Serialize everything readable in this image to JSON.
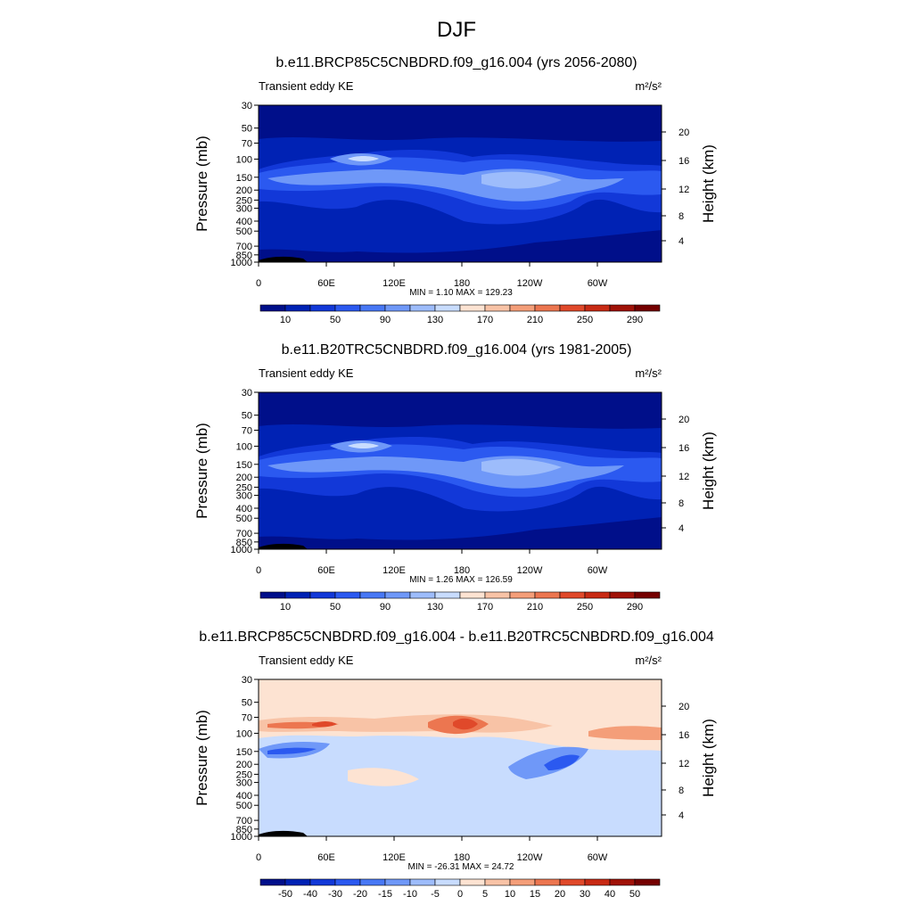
{
  "figure": {
    "title": "DJF"
  },
  "chart_data": [
    {
      "type": "heatmap",
      "title": "b.e11.BRCP85C5CNBDRD.f09_g16.004 (yrs 2056-2080)",
      "left_label": "Transient eddy KE",
      "units_label": "m²/s²",
      "ylabel": "Pressure (mb)",
      "ylabel_right": "Height (km)",
      "x_ticks": [
        "0",
        "60E",
        "120E",
        "180",
        "120W",
        "60W"
      ],
      "p_ticks": [
        "30",
        "50",
        "70",
        "100",
        "150",
        "200",
        "250",
        "300",
        "400",
        "500",
        "700",
        "850",
        "1000"
      ],
      "h_ticks": [
        "20",
        "16",
        "12",
        "8",
        "4"
      ],
      "minmax": "MIN =   1.10  MAX = 129.23",
      "min": 1.1,
      "max": 129.23,
      "colorbar": {
        "labels": [
          "10",
          "50",
          "90",
          "130",
          "170",
          "210",
          "250",
          "290"
        ],
        "colors": [
          "#000f8a",
          "#0022b4",
          "#1238d8",
          "#2b59f0",
          "#4878f5",
          "#6f98f8",
          "#9dbcfb",
          "#c8dcfe",
          "#fde3d2",
          "#f8c3a6",
          "#f49e79",
          "#ec7650",
          "#e0492a",
          "#c82a14",
          "#a01208",
          "#750000"
        ]
      }
    },
    {
      "type": "heatmap",
      "title": "b.e11.B20TRC5CNBDRD.f09_g16.004 (yrs 1981-2005)",
      "left_label": "Transient eddy KE",
      "units_label": "m²/s²",
      "ylabel": "Pressure (mb)",
      "ylabel_right": "Height (km)",
      "x_ticks": [
        "0",
        "60E",
        "120E",
        "180",
        "120W",
        "60W"
      ],
      "p_ticks": [
        "30",
        "50",
        "70",
        "100",
        "150",
        "200",
        "250",
        "300",
        "400",
        "500",
        "700",
        "850",
        "1000"
      ],
      "h_ticks": [
        "20",
        "16",
        "12",
        "8",
        "4"
      ],
      "minmax": "MIN =   1.26  MAX = 126.59",
      "min": 1.26,
      "max": 126.59,
      "colorbar": {
        "labels": [
          "10",
          "50",
          "90",
          "130",
          "170",
          "210",
          "250",
          "290"
        ],
        "colors": [
          "#000f8a",
          "#0022b4",
          "#1238d8",
          "#2b59f0",
          "#4878f5",
          "#6f98f8",
          "#9dbcfb",
          "#c8dcfe",
          "#fde3d2",
          "#f8c3a6",
          "#f49e79",
          "#ec7650",
          "#e0492a",
          "#c82a14",
          "#a01208",
          "#750000"
        ]
      }
    },
    {
      "type": "heatmap",
      "title": "b.e11.BRCP85C5CNBDRD.f09_g16.004 - b.e11.B20TRC5CNBDRD.f09_g16.004",
      "left_label": "Transient eddy KE",
      "units_label": "m²/s²",
      "ylabel": "Pressure (mb)",
      "ylabel_right": "Height (km)",
      "x_ticks": [
        "0",
        "60E",
        "120E",
        "180",
        "120W",
        "60W"
      ],
      "p_ticks": [
        "30",
        "50",
        "70",
        "100",
        "150",
        "200",
        "250",
        "300",
        "400",
        "500",
        "700",
        "850",
        "1000"
      ],
      "h_ticks": [
        "20",
        "16",
        "12",
        "8",
        "4"
      ],
      "minmax": "MIN = -26.31  MAX =  24.72",
      "min": -26.31,
      "max": 24.72,
      "colorbar": {
        "labels": [
          "-50",
          "-40",
          "-30",
          "-20",
          "-15",
          "-10",
          "-5",
          "0",
          "5",
          "10",
          "15",
          "20",
          "30",
          "40",
          "50"
        ],
        "colors": [
          "#000f8a",
          "#0022b4",
          "#1238d8",
          "#2b59f0",
          "#4878f5",
          "#6f98f8",
          "#9dbcfb",
          "#c8dcfe",
          "#fde3d2",
          "#f8c3a6",
          "#f49e79",
          "#ec7650",
          "#e0492a",
          "#c82a14",
          "#a01208",
          "#750000"
        ]
      }
    }
  ]
}
